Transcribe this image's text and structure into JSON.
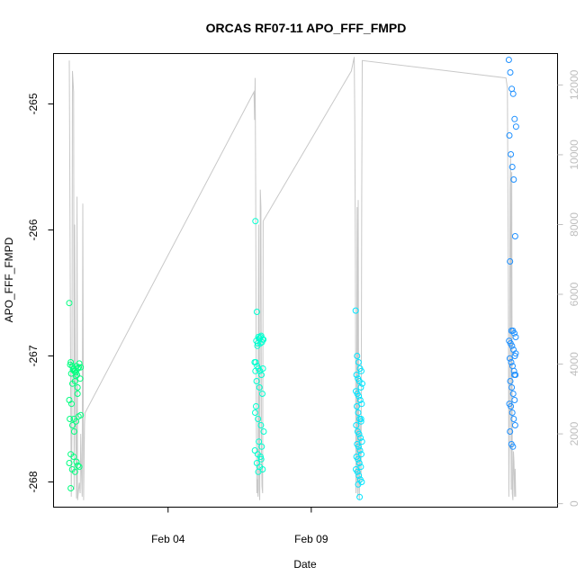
{
  "chart_data": {
    "type": "scatter",
    "title": "ORCAS RF07-11 APO_FFF_FMPD",
    "xlabel": "Date",
    "ylabel": "APO_FFF_FMPD",
    "ylim": [
      -268.2,
      -264.6
    ],
    "y2lim": [
      -100,
      12900
    ],
    "x_axis": {
      "type": "date",
      "ticks": [
        "Feb 04",
        "Feb 09"
      ]
    },
    "y_ticks": [
      "-265",
      "-266",
      "-267",
      "-268"
    ],
    "y2_ticks": [
      "0",
      "2000",
      "4000",
      "6000",
      "8000",
      "10000",
      "12000"
    ],
    "colors": {
      "frame": "#000000",
      "altitude_line": "#c8c8c8",
      "right_axis": "#bebebe"
    },
    "series": [
      {
        "x": [
          "Jan 31",
          "Jan 31",
          "Jan 31",
          "Jan 31",
          "Jan 31",
          "Jan 31",
          "Jan 31",
          "Jan 31",
          "Jan 31",
          "Jan 31",
          "Jan 31",
          "Jan 31",
          "Jan 31",
          "Jan 31",
          "Jan 31",
          "Jan 31",
          "Jan 31",
          "Jan 31",
          "Jan 31",
          "Jan 31",
          "Jan 31",
          "Jan 31",
          "Jan 31",
          "Jan 31",
          "Jan 31",
          "Jan 31",
          "Jan 31",
          "Jan 31",
          "Jan 31",
          "Jan 31",
          "Jan 31",
          "Jan 31",
          "Jan 31",
          "Jan 31",
          "Jan 31",
          "Jan 31",
          "Jan 31",
          "Jan 31",
          "Jan 31",
          "Jan 31"
        ],
        "x_days": [
          0.55,
          0.6,
          0.65,
          0.7,
          0.75,
          0.8,
          0.85,
          0.9,
          0.95,
          0.62,
          0.72,
          0.82,
          0.58,
          0.68,
          0.78,
          0.88,
          0.55,
          0.63,
          0.71,
          0.79,
          0.87,
          0.95,
          0.57,
          0.66,
          0.75,
          0.84,
          0.93,
          0.6,
          0.7,
          0.8,
          0.9,
          0.55,
          0.65,
          0.75,
          0.85,
          0.6,
          0.72,
          0.84,
          0.66,
          0.78
        ],
        "values": [
          -266.58,
          -267.05,
          -267.08,
          -267.1,
          -267.12,
          -267.08,
          -267.1,
          -267.06,
          -267.09,
          -267.14,
          -267.12,
          -267.15,
          -267.07,
          -267.11,
          -267.13,
          -267.09,
          -267.35,
          -267.38,
          -267.5,
          -267.52,
          -267.48,
          -267.47,
          -267.5,
          -267.55,
          -267.2,
          -267.25,
          -267.18,
          -267.78,
          -267.8,
          -267.84,
          -267.88,
          -267.85,
          -267.9,
          -267.92,
          -267.87,
          -268.05,
          -267.6,
          -267.3,
          -267.22,
          -267.16
        ],
        "color": "#00ff7f"
      },
      {
        "x_days": [
          7.05,
          7.1,
          7.15,
          7.2,
          7.25,
          7.3,
          7.08,
          7.13,
          7.18,
          7.23,
          7.28,
          7.33,
          7.12,
          7.22,
          7.02,
          7.06,
          7.11,
          7.16,
          7.21,
          7.26,
          7.31,
          7.09,
          7.19,
          7.29,
          7.04,
          7.14,
          7.24,
          7.34,
          7.07,
          7.17,
          7.27,
          7.03,
          7.13,
          7.23,
          7.1,
          7.2,
          7.3,
          7.15,
          7.25,
          7.05
        ],
        "values": [
          -265.93,
          -266.65,
          -266.85,
          -266.86,
          -266.84,
          -266.87,
          -266.88,
          -266.9,
          -266.86,
          -266.85,
          -266.89,
          -266.87,
          -266.92,
          -266.9,
          -267.05,
          -267.05,
          -267.08,
          -267.1,
          -267.12,
          -267.15,
          -267.1,
          -267.2,
          -267.25,
          -267.3,
          -267.45,
          -267.5,
          -267.55,
          -267.6,
          -267.4,
          -267.68,
          -267.72,
          -267.75,
          -267.78,
          -267.8,
          -267.85,
          -267.88,
          -267.9,
          -267.92,
          -267.82,
          -267.12
        ],
        "color": "#00ffd0"
      },
      {
        "x_days": [
          10.55,
          10.6,
          10.65,
          10.7,
          10.75,
          10.58,
          10.63,
          10.68,
          10.73,
          10.78,
          10.56,
          10.61,
          10.66,
          10.71,
          10.76,
          10.59,
          10.64,
          10.69,
          10.74,
          10.57,
          10.62,
          10.67,
          10.72,
          10.77,
          10.6,
          10.65,
          10.7,
          10.75,
          10.58,
          10.63,
          10.68,
          10.73,
          10.56,
          10.61,
          10.66,
          10.71,
          10.76,
          10.64,
          10.69,
          10.74
        ],
        "values": [
          -266.64,
          -267.0,
          -267.05,
          -267.1,
          -267.12,
          -267.15,
          -267.18,
          -267.2,
          -267.25,
          -267.22,
          -267.28,
          -267.3,
          -267.32,
          -267.35,
          -267.38,
          -267.4,
          -267.45,
          -267.5,
          -267.52,
          -267.55,
          -267.6,
          -267.62,
          -267.65,
          -267.68,
          -267.7,
          -267.72,
          -267.75,
          -267.78,
          -267.8,
          -267.82,
          -267.85,
          -267.88,
          -267.9,
          -267.92,
          -267.95,
          -267.98,
          -268.0,
          -268.02,
          -268.12,
          -267.5
        ],
        "color": "#00e5ff"
      },
      {
        "x_days": [
          15.9,
          15.95,
          16.0,
          16.05,
          16.1,
          16.15,
          15.92,
          15.97,
          16.02,
          16.07,
          16.12,
          15.94,
          15.99,
          16.04,
          16.09,
          16.14,
          15.91,
          15.96,
          16.01,
          16.06,
          16.11,
          15.93,
          15.98,
          16.03,
          16.08,
          16.13,
          15.95,
          16.0,
          16.05,
          16.1,
          15.92,
          15.97,
          16.02,
          16.07,
          16.12,
          15.94,
          15.99,
          16.04,
          16.09,
          16.14
        ],
        "values": [
          -264.65,
          -264.75,
          -264.88,
          -264.92,
          -265.12,
          -265.18,
          -265.25,
          -265.4,
          -265.5,
          -265.6,
          -266.05,
          -266.25,
          -266.8,
          -266.8,
          -266.82,
          -266.85,
          -266.88,
          -266.9,
          -266.92,
          -266.95,
          -267.0,
          -267.02,
          -267.05,
          -267.08,
          -267.12,
          -267.15,
          -267.2,
          -267.25,
          -267.3,
          -267.35,
          -267.38,
          -267.4,
          -267.45,
          -267.5,
          -267.55,
          -267.6,
          -267.7,
          -267.72,
          -267.15,
          -266.98
        ],
        "color": "#1e90ff"
      }
    ],
    "altitude_line": {
      "x_days": [
        0.55,
        0.56,
        0.6,
        0.62,
        0.64,
        0.66,
        0.7,
        0.72,
        0.74,
        0.76,
        0.8,
        0.82,
        0.84,
        0.9,
        0.93,
        0.95,
        0.97,
        1.0,
        1.02,
        1.05,
        1.08,
        1.1,
        7.0,
        7.02,
        7.04,
        7.06,
        7.08,
        7.1,
        7.12,
        7.14,
        7.16,
        7.18,
        7.2,
        7.22,
        7.24,
        7.26,
        7.28,
        7.3,
        7.32,
        10.4,
        10.5,
        10.52,
        10.54,
        10.56,
        10.58,
        10.6,
        10.62,
        10.64,
        10.66,
        10.68,
        10.7,
        10.72,
        10.74,
        10.76,
        10.78,
        15.8,
        15.85,
        15.88,
        15.9,
        15.92,
        15.94,
        15.96,
        15.98,
        16.0,
        16.02,
        16.04,
        16.06,
        16.08,
        16.1,
        16.12,
        16.14
      ],
      "values": [
        12700,
        11000,
        3000,
        200,
        2000,
        12400,
        11800,
        400,
        8000,
        3000,
        150,
        8800,
        100,
        600,
        300,
        2000,
        1000,
        200,
        8600,
        100,
        2300,
        2600,
        11800,
        11000,
        12200,
        9000,
        2500,
        300,
        700,
        200,
        8000,
        400,
        100,
        9000,
        8500,
        1500,
        500,
        300,
        8100,
        12400,
        12800,
        11000,
        7000,
        300,
        700,
        8500,
        200,
        8700,
        600,
        100,
        2500,
        1500,
        600,
        8700,
        12700,
        12200,
        11900,
        6500,
        200,
        2000,
        9000,
        10000,
        400,
        9500,
        300,
        100,
        1500,
        1200,
        200,
        1000,
        200
      ]
    }
  }
}
